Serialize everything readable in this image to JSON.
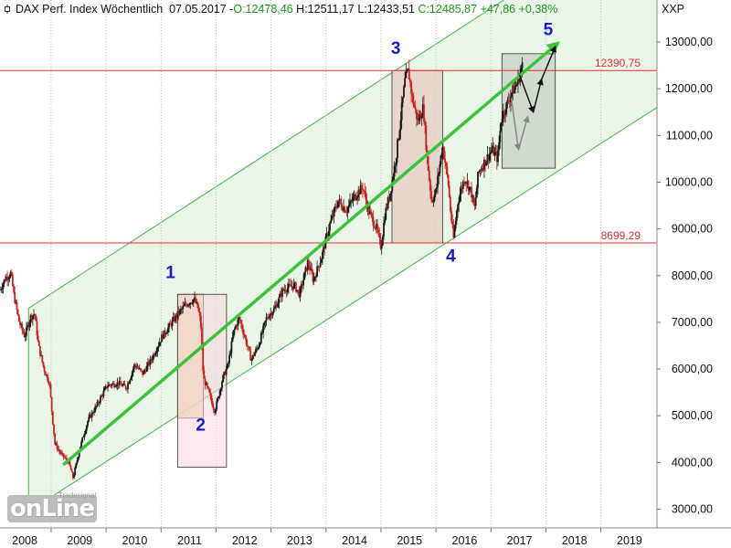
{
  "header": {
    "title": "DAX Perf. Index Wöchentlich",
    "date": "07.05.2017",
    "open": "O:12478,46",
    "high": "H:12511,17",
    "low": "L:12433,51",
    "close": "C:12485,87",
    "change": "+47,86",
    "change_pct": "+0,38%",
    "symbol": "XXP",
    "icon": "candle-icon"
  },
  "logo": {
    "brand": "onLine",
    "sub": "Tradesignal"
  },
  "colors": {
    "channel_fill": "#e9f5e7",
    "channel_line": "#4caf50",
    "horizontal_lines": "#e03030",
    "trend_arrow": "#3cc33c",
    "wave_labels": "#1a1acd",
    "candle_up": "#1a1a1a",
    "candle_down": "#cc2222"
  },
  "chart_data": {
    "type": "candlestick",
    "x_axis": {
      "range": [
        2007.85,
        2019.8
      ],
      "tick_labels": [
        "2008",
        "2009",
        "2010",
        "2011",
        "2012",
        "2013",
        "2014",
        "2015",
        "2016",
        "2017",
        "2018",
        "2019"
      ]
    },
    "y_axis": {
      "range": [
        2600,
        13900
      ],
      "tick_labels": [
        "3000,00",
        "4000,00",
        "5000,00",
        "6000,00",
        "7000,00",
        "8000,00",
        "9000,00",
        "10000,00",
        "11000,00",
        "12000,00",
        "13000,00"
      ],
      "position": "right"
    },
    "grid": "vertical dotted",
    "price_path": [
      [
        2007.85,
        7700
      ],
      [
        2007.95,
        7950
      ],
      [
        2008.05,
        8050
      ],
      [
        2008.1,
        7600
      ],
      [
        2008.2,
        7000
      ],
      [
        2008.3,
        6700
      ],
      [
        2008.4,
        7100
      ],
      [
        2008.48,
        7200
      ],
      [
        2008.55,
        6500
      ],
      [
        2008.65,
        6000
      ],
      [
        2008.75,
        5700
      ],
      [
        2008.8,
        5000
      ],
      [
        2008.85,
        4400
      ],
      [
        2008.95,
        4200
      ],
      [
        2009.1,
        4000
      ],
      [
        2009.18,
        3666
      ],
      [
        2009.3,
        4300
      ],
      [
        2009.45,
        4900
      ],
      [
        2009.6,
        5200
      ],
      [
        2009.8,
        5650
      ],
      [
        2010.0,
        5700
      ],
      [
        2010.15,
        5600
      ],
      [
        2010.3,
        6100
      ],
      [
        2010.45,
        5900
      ],
      [
        2010.6,
        6200
      ],
      [
        2010.8,
        6700
      ],
      [
        2010.95,
        6950
      ],
      [
        2011.1,
        7200
      ],
      [
        2011.25,
        7400
      ],
      [
        2011.38,
        7500
      ],
      [
        2011.45,
        7300
      ],
      [
        2011.5,
        7000
      ],
      [
        2011.55,
        5800
      ],
      [
        2011.65,
        5500
      ],
      [
        2011.75,
        5100
      ],
      [
        2011.8,
        5300
      ],
      [
        2011.9,
        5800
      ],
      [
        2012.0,
        6100
      ],
      [
        2012.1,
        6800
      ],
      [
        2012.2,
        7100
      ],
      [
        2012.3,
        6700
      ],
      [
        2012.42,
        6200
      ],
      [
        2012.55,
        6500
      ],
      [
        2012.7,
        7100
      ],
      [
        2012.85,
        7300
      ],
      [
        2013.0,
        7700
      ],
      [
        2013.2,
        7800
      ],
      [
        2013.3,
        7600
      ],
      [
        2013.45,
        8300
      ],
      [
        2013.55,
        7900
      ],
      [
        2013.7,
        8400
      ],
      [
        2013.85,
        9100
      ],
      [
        2014.0,
        9600
      ],
      [
        2014.15,
        9400
      ],
      [
        2014.3,
        9700
      ],
      [
        2014.45,
        9900
      ],
      [
        2014.55,
        9400
      ],
      [
        2014.7,
        9000
      ],
      [
        2014.78,
        8600
      ],
      [
        2014.85,
        9300
      ],
      [
        2014.95,
        9800
      ],
      [
        2015.05,
        10500
      ],
      [
        2015.15,
        11500
      ],
      [
        2015.22,
        12200
      ],
      [
        2015.28,
        12374
      ],
      [
        2015.35,
        11800
      ],
      [
        2015.45,
        11300
      ],
      [
        2015.55,
        11600
      ],
      [
        2015.62,
        10500
      ],
      [
        2015.7,
        9600
      ],
      [
        2015.78,
        9800
      ],
      [
        2015.9,
        10800
      ],
      [
        2016.0,
        10000
      ],
      [
        2016.05,
        9300
      ],
      [
        2016.1,
        8800
      ],
      [
        2016.18,
        9600
      ],
      [
        2016.3,
        10100
      ],
      [
        2016.42,
        9800
      ],
      [
        2016.48,
        9400
      ],
      [
        2016.55,
        10200
      ],
      [
        2016.7,
        10500
      ],
      [
        2016.8,
        10700
      ],
      [
        2016.9,
        10500
      ],
      [
        2016.97,
        11400
      ],
      [
        2017.05,
        11600
      ],
      [
        2017.15,
        11900
      ],
      [
        2017.25,
        12100
      ],
      [
        2017.35,
        12486
      ]
    ],
    "channel": {
      "upper": [
        [
          2008.37,
          7300
        ],
        [
          2017.8,
          14500
        ]
      ],
      "lower": [
        [
          2008.37,
          2950
        ],
        [
          2019.8,
          11600
        ]
      ],
      "middle_offset_note": "parallel rising trend channel"
    },
    "horizontal_levels": [
      {
        "value": 12390.75,
        "label": "12390,75"
      },
      {
        "value": 8699.29,
        "label": "8699,29"
      }
    ],
    "boxes": [
      {
        "x": [
          2011.08,
          2011.55
        ],
        "y": [
          4950,
          7600
        ],
        "fill": "#e8d49a",
        "opacity": 0.75
      },
      {
        "x": [
          2011.08,
          2011.97
        ],
        "y": [
          3900,
          7600
        ],
        "fill": "#f7d7e0",
        "opacity": 0.55
      },
      {
        "x": [
          2014.98,
          2015.9
        ],
        "y": [
          8699.29,
          12390.75
        ],
        "fill": "#e4c9c0",
        "opacity": 0.7
      },
      {
        "x": [
          2016.98,
          2017.95
        ],
        "y": [
          10300,
          12750
        ],
        "fill": "#c7d0c7",
        "opacity": 0.75
      }
    ],
    "trend_arrow": {
      "from": [
        2009.0,
        3950
      ],
      "to": [
        2018.0,
        12980
      ]
    },
    "forecast_arrows": {
      "black": [
        [
          2017.3,
          12300
        ],
        [
          2017.55,
          11500
        ],
        [
          2017.7,
          12200
        ],
        [
          2017.95,
          12900
        ]
      ],
      "gray": [
        [
          2017.15,
          11800
        ],
        [
          2017.28,
          10700
        ],
        [
          2017.45,
          11400
        ]
      ]
    },
    "wave_labels": [
      {
        "text": "1",
        "x": 2010.95,
        "y": 7950
      },
      {
        "text": "2",
        "x": 2011.5,
        "y": 4680
      },
      {
        "text": "3",
        "x": 2015.05,
        "y": 12750
      },
      {
        "text": "4",
        "x": 2016.05,
        "y": 8300
      },
      {
        "text": "5",
        "x": 2017.82,
        "y": 13150
      }
    ]
  }
}
